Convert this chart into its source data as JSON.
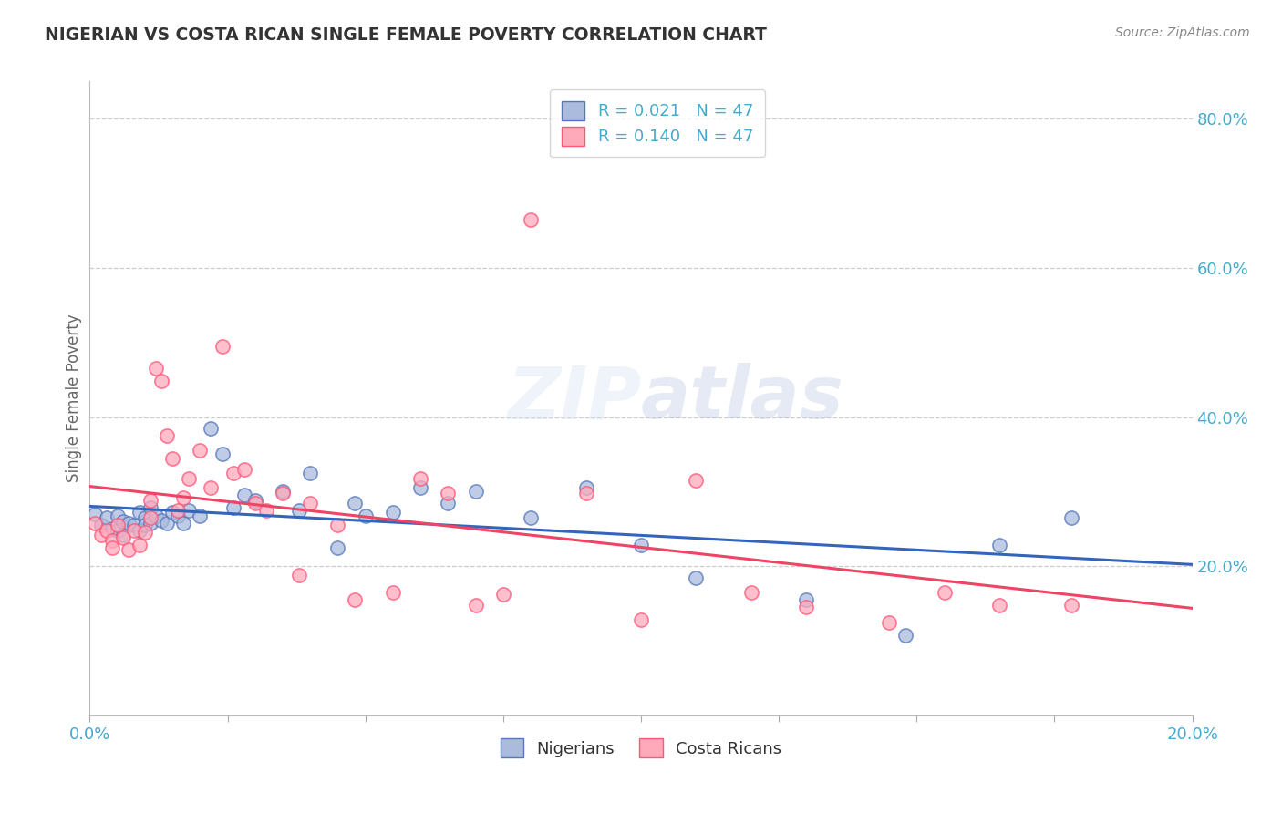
{
  "title": "NIGERIAN VS COSTA RICAN SINGLE FEMALE POVERTY CORRELATION CHART",
  "source": "Source: ZipAtlas.com",
  "ylabel": "Single Female Poverty",
  "blue_color": "#AABBDD",
  "pink_color": "#FFAABB",
  "blue_edge_color": "#5577BB",
  "pink_edge_color": "#FF5577",
  "blue_line_color": "#3366BB",
  "pink_line_color": "#EE4466",
  "axis_label_color": "#44AACC",
  "title_color": "#333333",
  "source_color": "#888888",
  "watermark_color": "#DDEEFF",
  "xmin": 0.0,
  "xmax": 0.2,
  "ymin": 0.0,
  "ymax": 0.85,
  "nigerians_x": [
    0.001,
    0.002,
    0.003,
    0.004,
    0.005,
    0.005,
    0.006,
    0.006,
    0.007,
    0.008,
    0.009,
    0.009,
    0.01,
    0.01,
    0.011,
    0.011,
    0.012,
    0.013,
    0.014,
    0.015,
    0.016,
    0.017,
    0.018,
    0.02,
    0.022,
    0.024,
    0.026,
    0.028,
    0.03,
    0.035,
    0.038,
    0.04,
    0.045,
    0.048,
    0.05,
    0.055,
    0.06,
    0.065,
    0.07,
    0.08,
    0.09,
    0.1,
    0.11,
    0.13,
    0.148,
    0.165,
    0.178
  ],
  "nigerians_y": [
    0.27,
    0.255,
    0.265,
    0.25,
    0.268,
    0.248,
    0.26,
    0.242,
    0.258,
    0.255,
    0.272,
    0.248,
    0.265,
    0.255,
    0.278,
    0.258,
    0.268,
    0.262,
    0.258,
    0.272,
    0.268,
    0.258,
    0.275,
    0.268,
    0.385,
    0.35,
    0.278,
    0.295,
    0.288,
    0.3,
    0.275,
    0.325,
    0.225,
    0.285,
    0.268,
    0.272,
    0.305,
    0.285,
    0.3,
    0.265,
    0.305,
    0.228,
    0.185,
    0.155,
    0.108,
    0.228,
    0.265
  ],
  "costa_ricans_x": [
    0.001,
    0.002,
    0.003,
    0.004,
    0.004,
    0.005,
    0.006,
    0.007,
    0.008,
    0.009,
    0.01,
    0.011,
    0.011,
    0.012,
    0.013,
    0.014,
    0.015,
    0.016,
    0.017,
    0.018,
    0.02,
    0.022,
    0.024,
    0.026,
    0.028,
    0.03,
    0.032,
    0.035,
    0.038,
    0.04,
    0.045,
    0.048,
    0.055,
    0.06,
    0.065,
    0.07,
    0.075,
    0.08,
    0.09,
    0.1,
    0.11,
    0.12,
    0.13,
    0.145,
    0.155,
    0.165,
    0.178
  ],
  "costa_ricans_y": [
    0.258,
    0.242,
    0.248,
    0.235,
    0.225,
    0.255,
    0.238,
    0.222,
    0.248,
    0.228,
    0.245,
    0.288,
    0.265,
    0.465,
    0.448,
    0.375,
    0.345,
    0.275,
    0.292,
    0.318,
    0.355,
    0.305,
    0.495,
    0.325,
    0.33,
    0.285,
    0.275,
    0.298,
    0.188,
    0.285,
    0.255,
    0.155,
    0.165,
    0.318,
    0.298,
    0.148,
    0.162,
    0.665,
    0.298,
    0.128,
    0.315,
    0.165,
    0.145,
    0.125,
    0.165,
    0.148,
    0.148
  ]
}
